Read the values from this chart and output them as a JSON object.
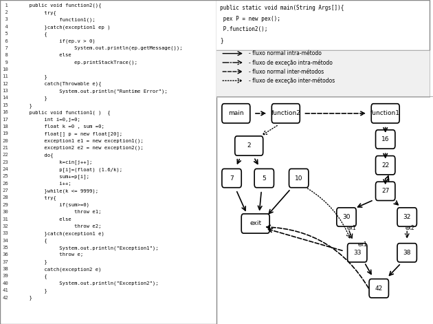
{
  "code_lines": [
    " 1    public void function2(){",
    " 2         try{",
    " 3              function1();",
    " 4         }catch(exception1 ep )",
    " 5         {",
    " 6              if(ep.v > 0)",
    " 7                   System.out.println(ep.getMessage());",
    " 8              else",
    " 9                   ep.printStackTrace();",
    "10",
    "11         }",
    "12         catch(Throwable e){",
    "13              System.out.println(\"Runtime Error\");",
    "14         }",
    "15    }",
    "16    public void function1( )  {",
    "17         int i=0,j=0;",
    "18         float k =0 , sum =0;",
    "19         float[] p = new float[20];",
    "20         exception1 e1 = new exception1();",
    "21         exception2 e2 = new exception2();",
    "22         do{",
    "23              k=cin[j++];",
    "24              p[i]=(float) (1.6/k);",
    "25              sum+=p[i];",
    "26              i++;",
    "27         }while(k <= 9999);",
    "28         try{",
    "29              if(sum>=0)",
    "30                   throw e1;",
    "31              else",
    "32                   throw e2;",
    "33         }catch(exception1 e)",
    "34         {",
    "35              System.out.println(\"Exception1\");",
    "36              throw e;",
    "37         }",
    "38         catch(exception2 e)",
    "39         {",
    "40              System.out.println(\"Exception2\");",
    "41         }",
    "42    }"
  ],
  "main_code": [
    "public static void main(String Args[]){",
    " pex P = new pex();",
    " P.function2();",
    "}"
  ],
  "legend": [
    [
      "solid_arrow",
      "- fluxo normal intra-método"
    ],
    [
      "dash_dot_arrow",
      "- fluxo de exceção intra-método"
    ],
    [
      "dashed_arrow",
      "- fluxo normal inter-métodos"
    ],
    [
      "dotted_arrow",
      "- fluxo de exceção inter-métodos"
    ]
  ],
  "bg_color": "#e8e8e8",
  "code_bg": "#ffffff",
  "node_bg": "#ffffff",
  "node_border": "#000000",
  "highlight_color": "#cc6600"
}
